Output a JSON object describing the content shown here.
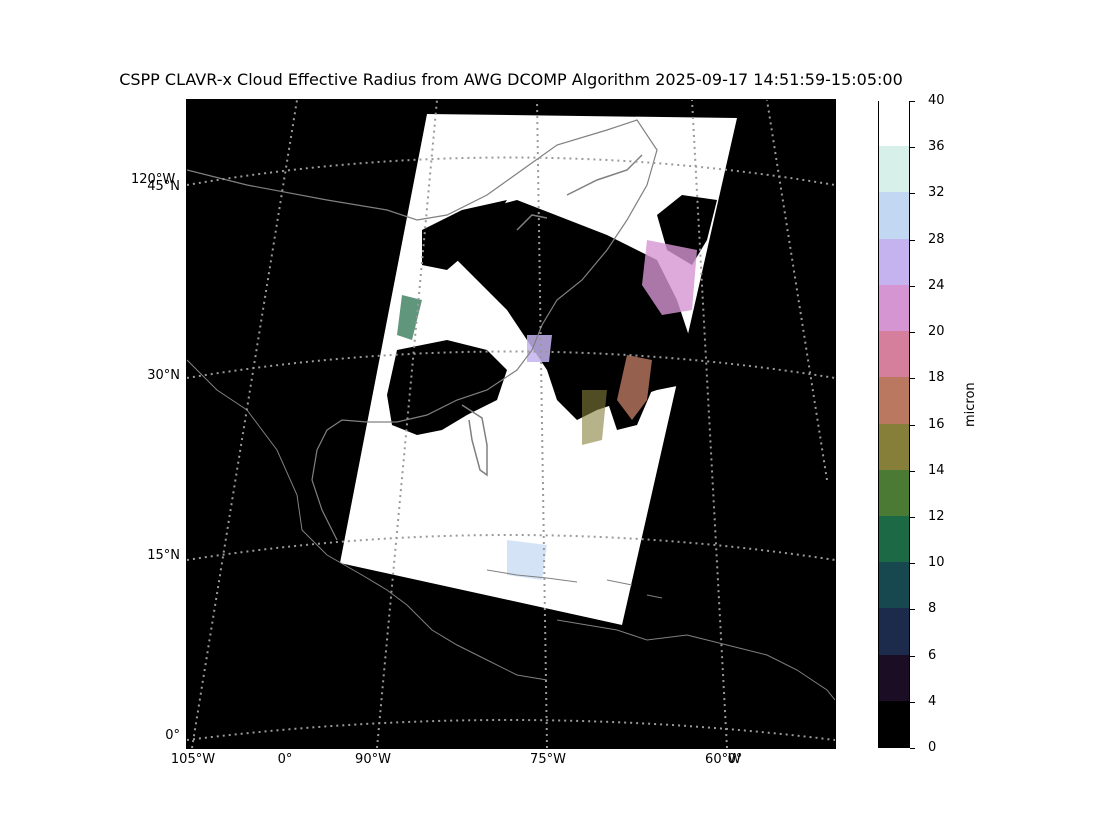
{
  "title": "CSPP CLAVR-x Cloud Effective Radius from AWG DCOMP Algorithm 2025-09-17 14:51:59-15:05:00",
  "map": {
    "background": "#000000",
    "lat_labels": [
      "45°N",
      "30°N",
      "15°N",
      "0°"
    ],
    "lon_labels": [
      "105°W",
      "0°",
      "90°W",
      "75°W",
      "60°W",
      "0°"
    ],
    "extra_label": "120°W"
  },
  "colorbar": {
    "label": "micron",
    "ticks": [
      "0",
      "4",
      "6",
      "8",
      "10",
      "12",
      "14",
      "16",
      "18",
      "20",
      "24",
      "28",
      "32",
      "36",
      "40"
    ],
    "colors": [
      "#000000",
      "#1b0e24",
      "#1c2a4c",
      "#17474f",
      "#1b6a45",
      "#4a7a34",
      "#857f3a",
      "#ba7861",
      "#d57f9c",
      "#d495d2",
      "#c4b3ef",
      "#c2d8f2",
      "#d8f0ea",
      "#ffffff"
    ]
  }
}
